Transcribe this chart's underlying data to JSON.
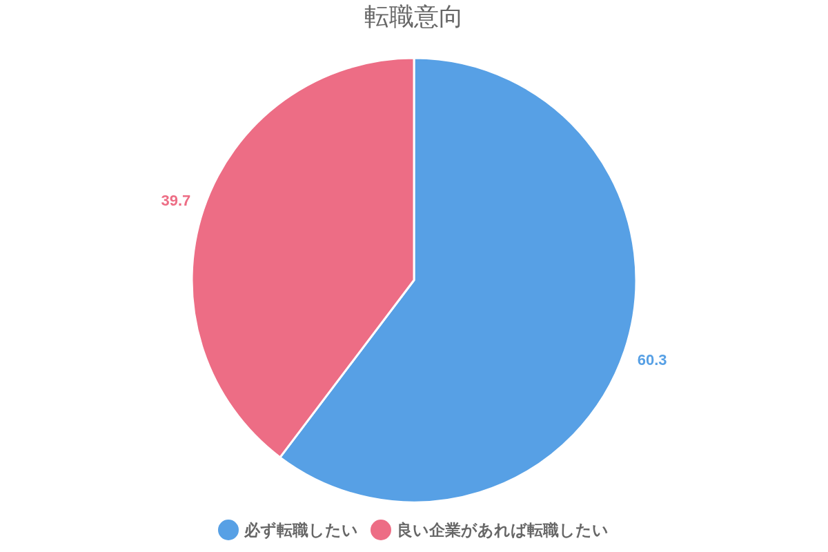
{
  "chart_data": {
    "type": "pie",
    "title": "転職意向",
    "categories": [
      "必ず転職したい",
      "良い企業があれば転職したい"
    ],
    "values": [
      60.3,
      39.7
    ],
    "colors": [
      "#57a0e5",
      "#ed6d85"
    ],
    "data_labels": true,
    "legend": "bottom"
  }
}
